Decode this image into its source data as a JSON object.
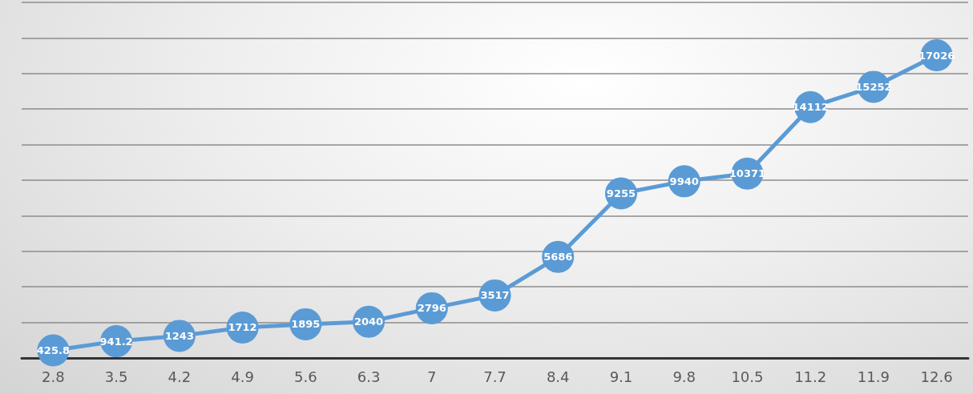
{
  "chart_data": {
    "type": "line",
    "categories": [
      "2.8",
      "3.5",
      "4.2",
      "4.9",
      "5.6",
      "6.3",
      "7",
      "7.7",
      "8.4",
      "9.1",
      "9.8",
      "10.5",
      "11.2",
      "11.9",
      "12.6"
    ],
    "values": [
      425.8,
      941.2,
      1243,
      1712,
      1895,
      2040,
      2796,
      3517,
      5686,
      9255,
      9940,
      10371,
      14112,
      15252,
      17026
    ],
    "color": "#5b9bd5",
    "ylim": [
      0,
      20000
    ],
    "yticks": [
      {
        "value": 0,
        "label": null
      },
      {
        "value": 2000,
        "label": null
      },
      {
        "value": 4000,
        "label": null
      },
      {
        "value": 6000,
        "label": null
      },
      {
        "value": 8000,
        "label": null
      },
      {
        "value": 10000,
        "label": null
      },
      {
        "value": 12000,
        "label": null
      },
      {
        "value": 14000,
        "label": null
      },
      {
        "value": 16000,
        "label": null
      },
      {
        "value": 18000,
        "label": null
      },
      {
        "value": 20000,
        "label": null
      }
    ],
    "tick_labels": "x",
    "grid": "y",
    "marker": "circle",
    "line_style": "solid",
    "data_labels": true
  }
}
